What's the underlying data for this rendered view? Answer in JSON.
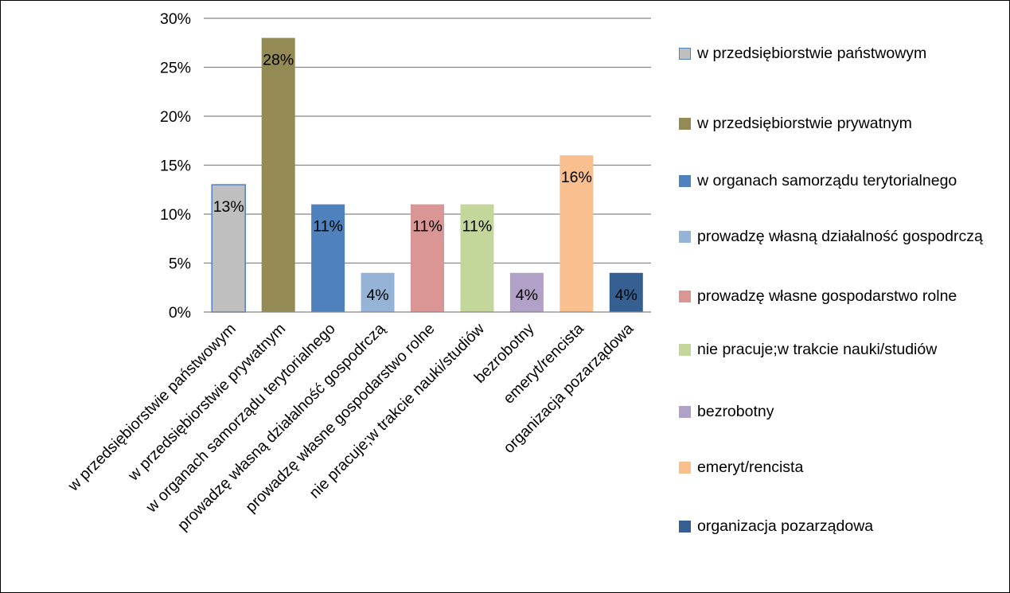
{
  "chart_data": {
    "type": "bar",
    "categories": [
      "w przedsiębiorstwie państwowym",
      "w przedsiębiorstwie prywatnym",
      "w organach samorządu terytorialnego",
      "prowadzę własną działalność gospodrczą",
      "prowadzę własne gospodarstwo rolne",
      "nie pracuje;w trakcie nauki/studiów",
      "bezrobotny",
      "emeryt/rencista",
      "organizacja pozarządowa"
    ],
    "values": [
      13,
      28,
      11,
      4,
      11,
      11,
      4,
      16,
      4
    ],
    "data_labels": [
      "13%",
      "28%",
      "11%",
      "4%",
      "11%",
      "11%",
      "4%",
      "16%",
      "4%"
    ],
    "colors": [
      "#bfbfbf",
      "#948a54",
      "#4f81bd",
      "#95b3d7",
      "#da9694",
      "#c4d79b",
      "#b1a0c7",
      "#fabf8f",
      "#366092"
    ],
    "first_bar_border": "#4f81bd",
    "ylim": [
      0,
      30
    ],
    "yticks": [
      0,
      5,
      10,
      15,
      20,
      25,
      30
    ],
    "ytick_labels": [
      "0%",
      "5%",
      "10%",
      "15%",
      "20%",
      "25%",
      "30%"
    ],
    "grid": true,
    "legend_position": "right",
    "legend": [
      "w przedsiębiorstwie państwowym",
      "w przedsiębiorstwie prywatnym",
      "w organach samorządu terytorialnego",
      "prowadzę własną działalność gospodrczą",
      "prowadzę własne gospodarstwo rolne",
      "nie pracuje;w trakcie nauki/studiów",
      "bezrobotny",
      "emeryt/rencista",
      "organizacja pozarządowa"
    ],
    "title": "",
    "xlabel": "",
    "ylabel": ""
  }
}
